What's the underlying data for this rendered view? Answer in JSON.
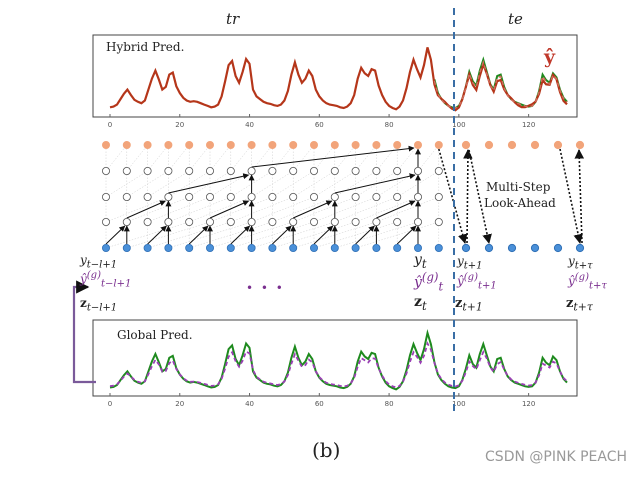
{
  "labels": {
    "train": "tr",
    "test": "te",
    "hybrid_title": "Hybrid Pred.",
    "yhat": "ŷ",
    "global_title": "Global Pred.",
    "lookahead_line1": "Multi-Step",
    "lookahead_line2": "Look-Ahead",
    "dots": "• • •",
    "caption": "(b)",
    "watermark": "CSDN @PINK PEACH"
  },
  "bottom_labels": [
    {
      "y": "y",
      "ysub": "t−l+1",
      "g": "ŷ",
      "gsub": "t−l+1",
      "gsup": "(g)",
      "z": "z",
      "zsub": "t−l+1"
    },
    {
      "y": "y",
      "ysub": "t",
      "g": "ŷ",
      "gsub": "t",
      "gsup": "(g)",
      "z": "z",
      "zsub": "t"
    },
    {
      "y": "y",
      "ysub": "t+1",
      "g": "ŷ",
      "gsub": "t+1",
      "gsup": "(g)",
      "z": "z",
      "zsub": "t+1"
    },
    {
      "y": "y",
      "ysub": "t+τ",
      "g": "ŷ",
      "gsub": "t+τ",
      "gsup": "(g)",
      "z": "z",
      "zsub": "t+τ"
    }
  ],
  "axis_ticks": [
    "0",
    "20",
    "40",
    "60",
    "80",
    "100",
    "120"
  ],
  "colors": {
    "hybrid_line": "#b5361a",
    "actual_line": "#1e8a1e",
    "global_line": "#9b3fb5",
    "split_line": "#3a6ea5",
    "node_orange": "#f2a47a",
    "node_blue": "#4a90d9",
    "purple_text": "#7a2f8f"
  },
  "series": {
    "actual": [
      0.04,
      0.05,
      0.08,
      0.16,
      0.24,
      0.3,
      0.22,
      0.15,
      0.12,
      0.1,
      0.14,
      0.3,
      0.46,
      0.58,
      0.45,
      0.3,
      0.34,
      0.52,
      0.55,
      0.35,
      0.25,
      0.18,
      0.14,
      0.12,
      0.13,
      0.12,
      0.1,
      0.08,
      0.06,
      0.04,
      0.05,
      0.08,
      0.2,
      0.42,
      0.66,
      0.72,
      0.5,
      0.4,
      0.56,
      0.75,
      0.68,
      0.3,
      0.2,
      0.16,
      0.12,
      0.1,
      0.09,
      0.07,
      0.06,
      0.08,
      0.14,
      0.28,
      0.52,
      0.7,
      0.52,
      0.4,
      0.46,
      0.58,
      0.5,
      0.3,
      0.2,
      0.14,
      0.1,
      0.08,
      0.07,
      0.06,
      0.04,
      0.03,
      0.05,
      0.1,
      0.22,
      0.46,
      0.62,
      0.54,
      0.5,
      0.6,
      0.58,
      0.36,
      0.22,
      0.12,
      0.06,
      0.03,
      0.01,
      0.05,
      0.14,
      0.32,
      0.56,
      0.74,
      0.6,
      0.48,
      0.66,
      0.92,
      0.74,
      0.45,
      0.25,
      0.16,
      0.1,
      0.06,
      0.04,
      0.03,
      0.06,
      0.16,
      0.34,
      0.56,
      0.42,
      0.36,
      0.58,
      0.74,
      0.56,
      0.38,
      0.3,
      0.5,
      0.52,
      0.34,
      0.22,
      0.16,
      0.12,
      0.1,
      0.08,
      0.06,
      0.05,
      0.06,
      0.12,
      0.28,
      0.52,
      0.44,
      0.4,
      0.54,
      0.48,
      0.3,
      0.18,
      0.12
    ]
  },
  "hybrid_split_index": 93,
  "global_smoothing": 0.85
}
